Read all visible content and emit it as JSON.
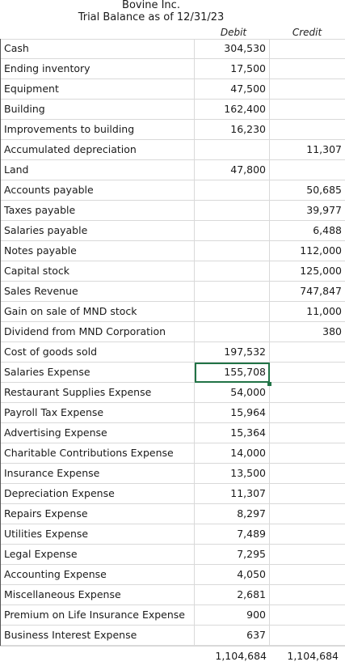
{
  "report": {
    "company": "Bovine Inc.",
    "title": "Trial Balance as of 12/31/23",
    "debit_header": "Debit",
    "credit_header": "Credit"
  },
  "rows": [
    {
      "account": "Cash",
      "debit": "304,530",
      "credit": ""
    },
    {
      "account": "Ending inventory",
      "debit": "17,500",
      "credit": ""
    },
    {
      "account": "Equipment",
      "debit": "47,500",
      "credit": ""
    },
    {
      "account": "Building",
      "debit": "162,400",
      "credit": ""
    },
    {
      "account": "Improvements to building",
      "debit": "16,230",
      "credit": ""
    },
    {
      "account": "Accumulated depreciation",
      "debit": "",
      "credit": "11,307"
    },
    {
      "account": "Land",
      "debit": "47,800",
      "credit": ""
    },
    {
      "account": "Accounts payable",
      "debit": "",
      "credit": "50,685"
    },
    {
      "account": "Taxes payable",
      "debit": "",
      "credit": "39,977"
    },
    {
      "account": "Salaries payable",
      "debit": "",
      "credit": "6,488"
    },
    {
      "account": "Notes payable",
      "debit": "",
      "credit": "112,000"
    },
    {
      "account": "Capital stock",
      "debit": "",
      "credit": "125,000"
    },
    {
      "account": "Sales Revenue",
      "debit": "",
      "credit": "747,847"
    },
    {
      "account": "Gain on sale of MND stock",
      "debit": "",
      "credit": "11,000"
    },
    {
      "account": "Dividend from MND Corporation",
      "debit": "",
      "credit": "380"
    },
    {
      "account": "Cost of goods sold",
      "debit": "197,532",
      "credit": ""
    },
    {
      "account": "Salaries Expense",
      "debit": "155,708",
      "credit": "",
      "selected": true
    },
    {
      "account": "Restaurant Supplies Expense",
      "debit": "54,000",
      "credit": ""
    },
    {
      "account": "Payroll Tax Expense",
      "debit": "15,964",
      "credit": ""
    },
    {
      "account": "Advertising Expense",
      "debit": "15,364",
      "credit": ""
    },
    {
      "account": "Charitable Contributions Expense",
      "debit": "14,000",
      "credit": ""
    },
    {
      "account": "Insurance Expense",
      "debit": "13,500",
      "credit": ""
    },
    {
      "account": "Depreciation Expense",
      "debit": "11,307",
      "credit": ""
    },
    {
      "account": "Repairs Expense",
      "debit": "8,297",
      "credit": ""
    },
    {
      "account": "Utilities Expense",
      "debit": "7,489",
      "credit": ""
    },
    {
      "account": "Legal Expense",
      "debit": "7,295",
      "credit": ""
    },
    {
      "account": "Accounting Expense",
      "debit": "4,050",
      "credit": ""
    },
    {
      "account": "Miscellaneous Expense",
      "debit": "2,681",
      "credit": ""
    },
    {
      "account": "Premium on Life Insurance Expense",
      "debit": "900",
      "credit": ""
    },
    {
      "account": "Business Interest Expense",
      "debit": "637",
      "credit": ""
    }
  ],
  "totals": {
    "debit": "1,104,684",
    "credit": "1,104,684"
  },
  "colors": {
    "selection": "#217346",
    "gridline": "#d9d9d9"
  }
}
